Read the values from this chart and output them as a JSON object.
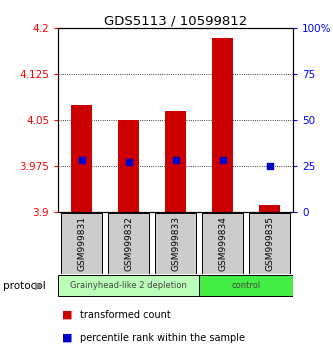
{
  "title": "GDS5113 / 10599812",
  "samples": [
    "GSM999831",
    "GSM999832",
    "GSM999833",
    "GSM999834",
    "GSM999835"
  ],
  "bar_top": [
    4.075,
    4.05,
    4.065,
    4.185,
    3.912
  ],
  "bar_bottom": 3.9,
  "percentile": [
    28.5,
    27.5,
    28.5,
    28.5,
    25.0
  ],
  "ylim": [
    3.9,
    4.2
  ],
  "y2lim": [
    0,
    100
  ],
  "yticks": [
    3.9,
    3.975,
    4.05,
    4.125,
    4.2
  ],
  "ytick_labels": [
    "3.9",
    "3.975",
    "4.05",
    "4.125",
    "4.2"
  ],
  "y2ticks": [
    0,
    25,
    50,
    75,
    100
  ],
  "y2tick_labels": [
    "0",
    "25",
    "50",
    "75",
    "100%"
  ],
  "bar_color": "#cc0000",
  "percentile_color": "#0000cc",
  "grid_color": "#000000",
  "protocol_groups": [
    {
      "label": "Grainyhead-like 2 depletion",
      "indices": [
        0,
        1,
        2
      ],
      "color": "#bbffbb"
    },
    {
      "label": "control",
      "indices": [
        3,
        4
      ],
      "color": "#44ee44"
    }
  ],
  "sample_box_color": "#cccccc",
  "legend_bar_label": "transformed count",
  "legend_pct_label": "percentile rank within the sample",
  "protocol_label": "protocol",
  "background_color": "#ffffff"
}
